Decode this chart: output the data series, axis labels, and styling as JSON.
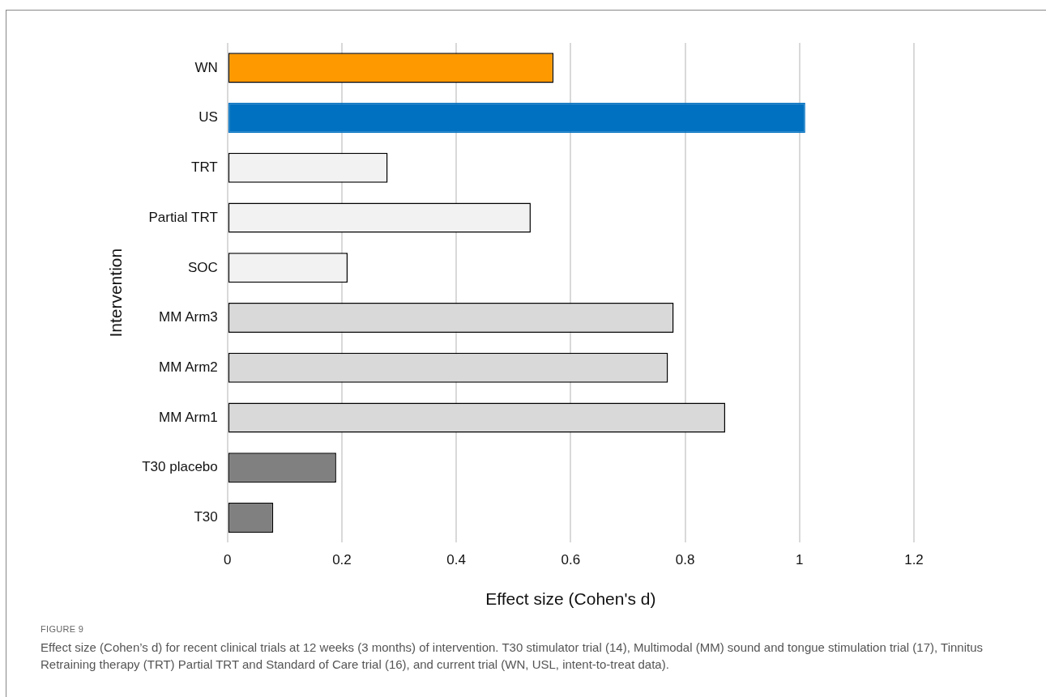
{
  "chart_data": {
    "type": "bar",
    "orientation": "horizontal",
    "categories": [
      "WN",
      "US",
      "TRT",
      "Partial TRT",
      "SOC",
      "MM Arm3",
      "MM Arm2",
      "MM Arm1",
      "T30 placebo",
      "T30"
    ],
    "values": [
      0.57,
      1.01,
      0.28,
      0.53,
      0.21,
      0.78,
      0.77,
      0.87,
      0.19,
      0.08
    ],
    "colors": [
      "#ff9900",
      "#0070c0",
      "#f2f2f2",
      "#f2f2f2",
      "#f2f2f2",
      "#d9d9d9",
      "#d9d9d9",
      "#d9d9d9",
      "#808080",
      "#808080"
    ],
    "xlim": [
      0,
      1.2
    ],
    "xticks": [
      0,
      0.2,
      0.4,
      0.6,
      0.8,
      1,
      1.2
    ],
    "xlabel": "Effect size (Cohen's d)",
    "ylabel": "Intervention",
    "grid": "x",
    "legend": false,
    "annotations": [
      "FIGURE 9",
      "Effect size (Cohen’s d) for recent clinical trials at 12 weeks (3 months) of intervention. T30 stimulator trial (14), Multimodal (MM) sound and tongue stimulation trial (17), Tinnitus Retraining therapy (TRT) Partial TRT and Standard of Care trial (16), and current trial (WN, USL, intent-to-treat data)."
    ]
  }
}
